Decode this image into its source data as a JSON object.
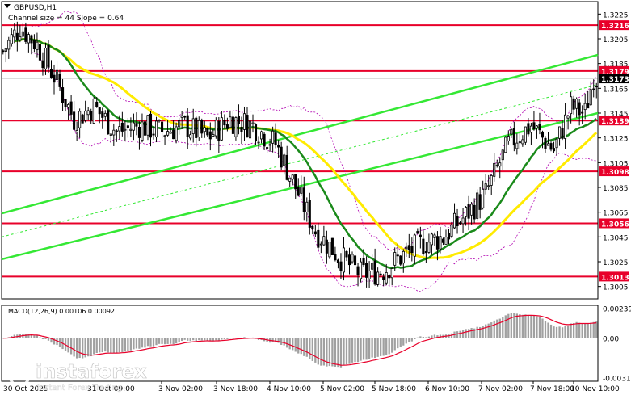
{
  "header": {
    "symbol": "GBPUSD,H1",
    "channel_info": "Channel size = 44 Slope = 0.64"
  },
  "chart_data": {
    "type": "candlestick",
    "symbol": "GBPUSD",
    "timeframe": "H1",
    "ylim": [
      1.2995,
      1.3235
    ],
    "price_ticks": [
      "1.3225",
      "1.3205",
      "1.3185",
      "1.3165",
      "1.3145",
      "1.3125",
      "1.3105",
      "1.3085",
      "1.3065",
      "1.3045",
      "1.3025",
      "1.3005"
    ],
    "x_labels": [
      "3 Nov 02:00",
      "3 Nov 18:00",
      "4 Nov 10:00",
      "5 Nov 02:00",
      "5 Nov 18:00",
      "6 Nov 10:00",
      "7 Nov 02:00",
      "7 Nov 18:00",
      "10 Nov 10:00"
    ],
    "x_label_partial": [
      "30 Oct 2025",
      "31 Oct 09:00"
    ],
    "current_price": "1.3173",
    "levels": [
      {
        "label": "1.3216",
        "value": 1.3216,
        "color": "#e8002a"
      },
      {
        "label": "1.3179",
        "value": 1.3179,
        "color": "#e8002a"
      },
      {
        "label": "1.3139",
        "value": 1.3139,
        "color": "#e8002a"
      },
      {
        "label": "1.3098",
        "value": 1.3098,
        "color": "#e8002a"
      },
      {
        "label": "1.3056",
        "value": 1.3056,
        "color": "#e8002a"
      },
      {
        "label": "1.3013",
        "value": 1.3013,
        "color": "#e8002a"
      }
    ],
    "channel": {
      "upper": [
        [
          0,
          1.3064
        ],
        [
          1,
          1.3192
        ]
      ],
      "lower": [
        [
          0,
          1.3027
        ],
        [
          1,
          1.3145
        ]
      ],
      "middle": [
        [
          0,
          1.3045
        ],
        [
          1,
          1.3168
        ]
      ],
      "color": "#34e834"
    },
    "ma_fast_color": "#1a8a1a",
    "ma_slow_color": "#ffeb00",
    "bollinger_color": "#b000b0",
    "macd": {
      "label": "MACD(12,26,9) 0.00106 0.00092",
      "ticks": [
        "0.00239",
        "0.00",
        "-0.00312"
      ],
      "ylim": [
        -0.0034,
        0.0026
      ],
      "signal_color": "#e8002a",
      "hist_color": "#a0a0a0"
    }
  },
  "watermark": {
    "brand": "instaforex",
    "tagline": "Instant Forex Trading"
  }
}
